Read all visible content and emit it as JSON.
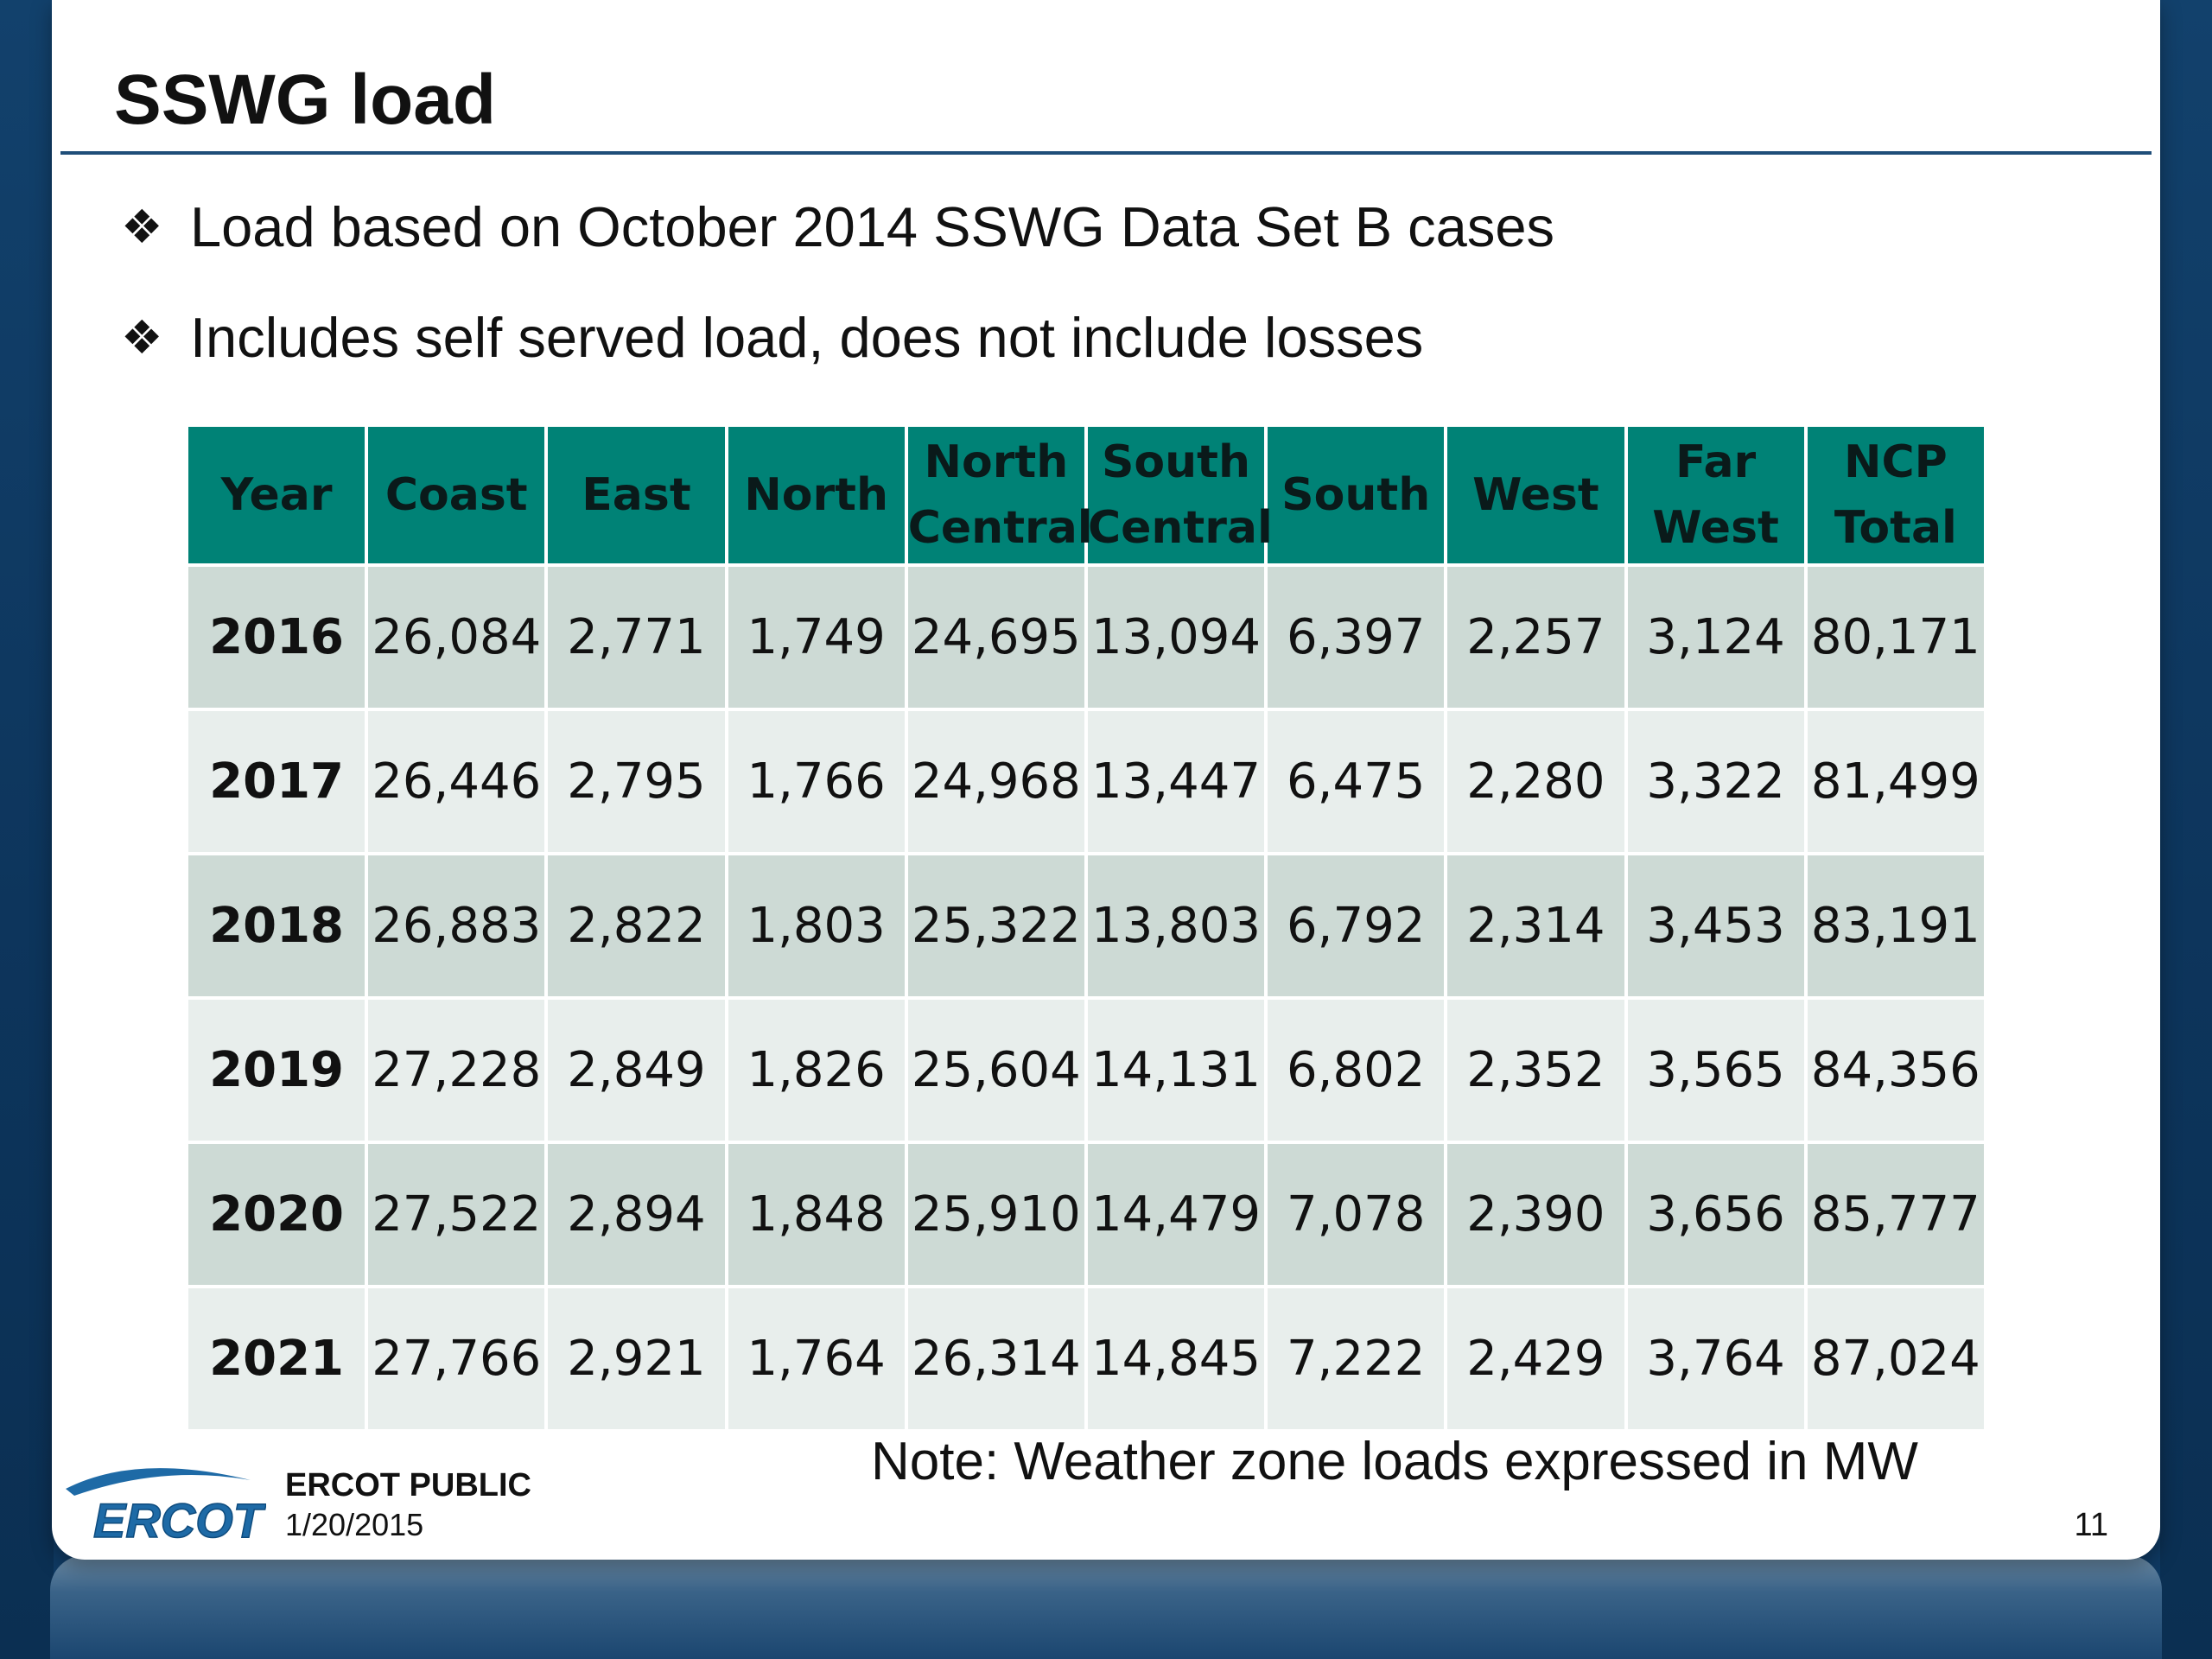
{
  "slide": {
    "title": "SSWG load",
    "bullet_glyph": "❖",
    "bullets": [
      "Load based on October 2014 SSWG Data Set B cases",
      "Includes self served load, does not include losses"
    ],
    "note": "Note: Weather zone loads expressed in MW"
  },
  "table": {
    "headers": [
      {
        "line1": "Year",
        "line2": ""
      },
      {
        "line1": "Coast",
        "line2": ""
      },
      {
        "line1": "East",
        "line2": ""
      },
      {
        "line1": "North",
        "line2": ""
      },
      {
        "line1": "North",
        "line2": "Central"
      },
      {
        "line1": "South",
        "line2": "Central"
      },
      {
        "line1": "South",
        "line2": ""
      },
      {
        "line1": "West",
        "line2": ""
      },
      {
        "line1": "Far",
        "line2": "West"
      },
      {
        "line1": "NCP",
        "line2": "Total"
      }
    ],
    "rows": [
      [
        "2016",
        "26,084",
        "2,771",
        "1,749",
        "24,695",
        "13,094",
        "6,397",
        "2,257",
        "3,124",
        "80,171"
      ],
      [
        "2017",
        "26,446",
        "2,795",
        "1,766",
        "24,968",
        "13,447",
        "6,475",
        "2,280",
        "3,322",
        "81,499"
      ],
      [
        "2018",
        "26,883",
        "2,822",
        "1,803",
        "25,322",
        "13,803",
        "6,792",
        "2,314",
        "3,453",
        "83,191"
      ],
      [
        "2019",
        "27,228",
        "2,849",
        "1,826",
        "25,604",
        "14,131",
        "6,802",
        "2,352",
        "3,565",
        "84,356"
      ],
      [
        "2020",
        "27,522",
        "2,894",
        "1,848",
        "25,910",
        "14,479",
        "7,078",
        "2,390",
        "3,656",
        "85,777"
      ],
      [
        "2021",
        "27,766",
        "2,921",
        "1,764",
        "26,314",
        "14,845",
        "7,222",
        "2,429",
        "3,764",
        "87,024"
      ]
    ]
  },
  "footer": {
    "logo_text": "ERCOT",
    "label": "ERCOT PUBLIC",
    "date": "1/20/2015",
    "page_number": "11"
  },
  "colors": {
    "header_fill": "#008276",
    "row_dark": "#cddad5",
    "row_light": "#e8eeec",
    "title_rule": "#1f4e79",
    "frame": "#0f3a63",
    "logo_blue": "#1e6aa6"
  }
}
